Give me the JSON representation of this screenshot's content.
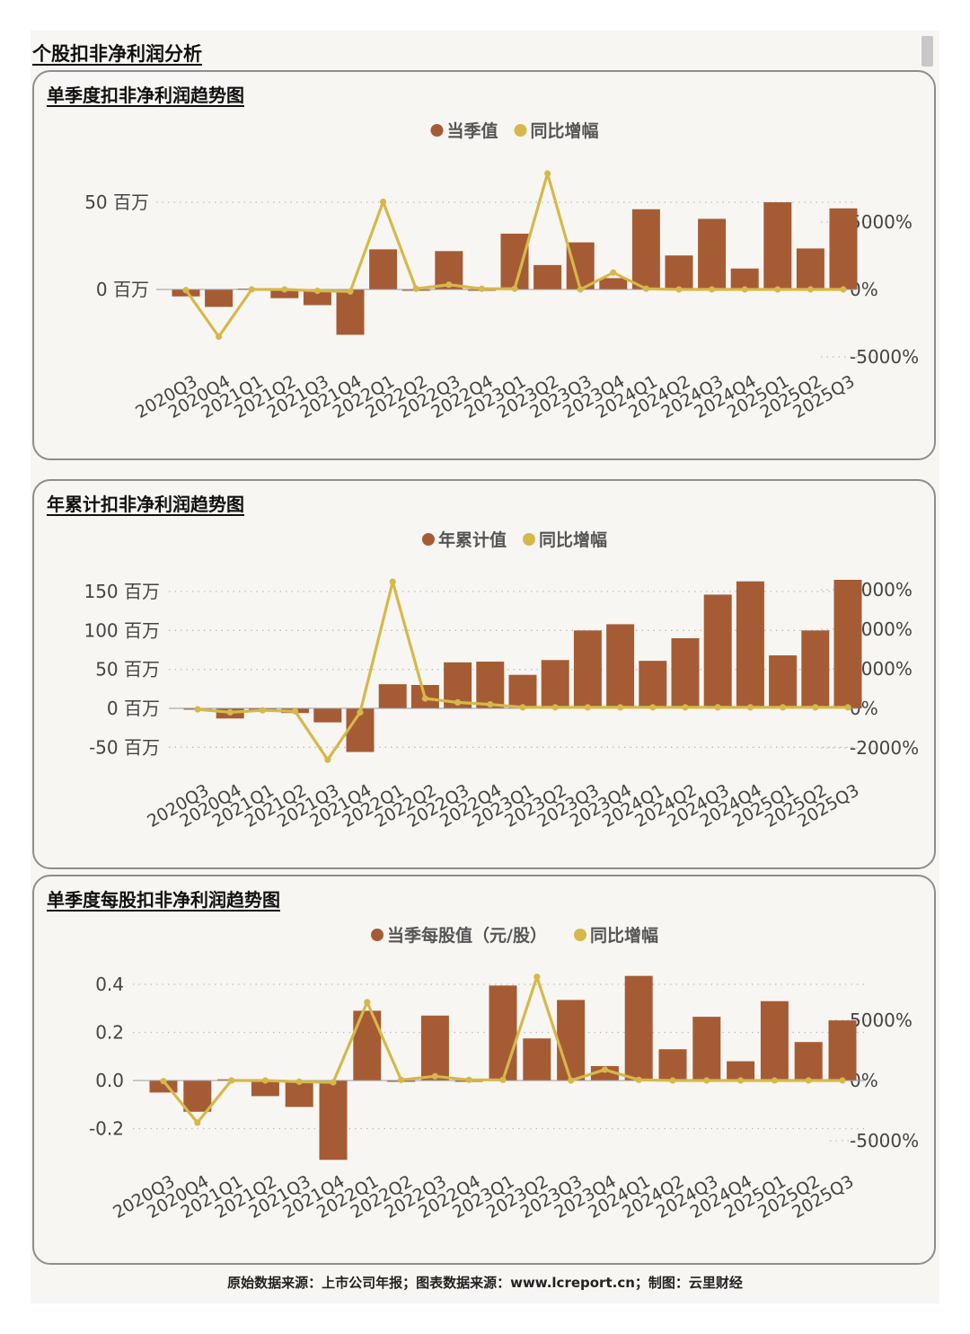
{
  "page": {
    "title": "个股扣非净利润分析",
    "footer": "原始数据来源：上市公司年报；图表数据来源：www.lcreport.cn；制图：云里财经"
  },
  "colors": {
    "bar": "#a55c35",
    "line": "#d6b84a",
    "grid": "#bdbdbd",
    "axis_text": "#444444"
  },
  "chart_data": [
    {
      "type": "bar",
      "title": "单季度扣非净利润趋势图",
      "legend": [
        "当季值",
        "同比增幅"
      ],
      "categories": [
        "2020Q3",
        "2020Q4",
        "2021Q1",
        "2021Q2",
        "2021Q3",
        "2021Q4",
        "2022Q1",
        "2022Q2",
        "2022Q3",
        "2022Q4",
        "2023Q1",
        "2023Q2",
        "2023Q3",
        "2023Q4",
        "2024Q1",
        "2024Q2",
        "2024Q3",
        "2024Q4",
        "2025Q1",
        "2025Q2",
        "2025Q3"
      ],
      "series": [
        {
          "name": "当季值",
          "type": "bar",
          "axis": "left",
          "values": [
            -4,
            -10,
            0.5,
            -5,
            -9,
            -26,
            23,
            -0.5,
            22,
            0,
            32,
            14,
            27,
            6.5,
            46,
            19.5,
            40.5,
            12,
            50,
            23.5,
            46.5
          ]
        },
        {
          "name": "同比增幅",
          "type": "line",
          "axis": "right",
          "values": [
            -50,
            -3500,
            0,
            0,
            -100,
            -150,
            6500,
            50,
            350,
            50,
            50,
            8600,
            0,
            1250,
            50,
            0,
            0,
            0,
            0,
            0,
            0
          ]
        }
      ],
      "y_left": {
        "ticks": [
          0,
          50
        ],
        "tick_labels": [
          "0 百万",
          "50 百万"
        ]
      },
      "y_right": {
        "ticks": [
          -5000,
          0,
          5000
        ],
        "tick_labels": [
          "-5000%",
          "0%",
          "5000%"
        ]
      }
    },
    {
      "type": "bar",
      "title": "年累计扣非净利润趋势图",
      "legend": [
        "年累计值",
        "同比增幅"
      ],
      "categories": [
        "2020Q3",
        "2020Q4",
        "2021Q1",
        "2021Q2",
        "2021Q3",
        "2021Q4",
        "2022Q1",
        "2022Q2",
        "2022Q3",
        "2022Q4",
        "2023Q1",
        "2023Q2",
        "2023Q3",
        "2023Q4",
        "2024Q1",
        "2024Q2",
        "2024Q3",
        "2024Q4",
        "2025Q1",
        "2025Q2",
        "2025Q3"
      ],
      "series": [
        {
          "name": "年累计值",
          "type": "bar",
          "axis": "left",
          "values": [
            -1.5,
            -13,
            -3,
            -6,
            -18,
            -56,
            31,
            30,
            59,
            60,
            43,
            62,
            100,
            108,
            61,
            90,
            146,
            163,
            68,
            100,
            165
          ]
        },
        {
          "name": "同比增幅",
          "type": "line",
          "axis": "right",
          "values": [
            -50,
            -200,
            -100,
            -150,
            -2600,
            -200,
            6400,
            500,
            300,
            200,
            50,
            50,
            50,
            50,
            50,
            50,
            50,
            50,
            50,
            50,
            50
          ]
        }
      ],
      "y_left": {
        "ticks": [
          -50,
          0,
          50,
          100,
          150
        ],
        "tick_labels": [
          "-50 百万",
          "0 百万",
          "50 百万",
          "100 百万",
          "150 百万"
        ]
      },
      "y_right": {
        "ticks": [
          -2000,
          0,
          2000,
          4000,
          6000
        ],
        "tick_labels": [
          "-2000%",
          "0%",
          "2000%",
          "4000%",
          "6000%"
        ]
      }
    },
    {
      "type": "bar",
      "title": "单季度每股扣非净利润趋势图",
      "legend": [
        "当季每股值（元/股）",
        "同比增幅"
      ],
      "categories": [
        "2020Q3",
        "2020Q4",
        "2021Q1",
        "2021Q2",
        "2021Q3",
        "2021Q4",
        "2022Q1",
        "2022Q2",
        "2022Q3",
        "2022Q4",
        "2023Q1",
        "2023Q2",
        "2023Q3",
        "2023Q4",
        "2024Q1",
        "2024Q2",
        "2024Q3",
        "2024Q4",
        "2025Q1",
        "2025Q2",
        "2025Q3"
      ],
      "series": [
        {
          "name": "当季每股值（元/股）",
          "type": "bar",
          "axis": "left",
          "values": [
            -0.05,
            -0.13,
            0.005,
            -0.065,
            -0.11,
            -0.33,
            0.29,
            -0.005,
            0.27,
            0,
            0.395,
            0.175,
            0.335,
            0.06,
            0.435,
            0.13,
            0.265,
            0.08,
            0.33,
            0.16,
            0.25
          ]
        },
        {
          "name": "同比增幅",
          "type": "line",
          "axis": "right",
          "values": [
            -50,
            -3500,
            0,
            0,
            -100,
            -150,
            6500,
            50,
            350,
            50,
            50,
            8600,
            0,
            900,
            50,
            0,
            0,
            0,
            0,
            0,
            0
          ]
        }
      ],
      "y_left": {
        "ticks": [
          -0.2,
          0.0,
          0.2,
          0.4
        ],
        "tick_labels": [
          "-0.2",
          "0.0",
          "0.2",
          "0.4"
        ]
      },
      "y_right": {
        "ticks": [
          -5000,
          0,
          5000
        ],
        "tick_labels": [
          "-5000%",
          "0%",
          "5000%"
        ]
      }
    }
  ]
}
